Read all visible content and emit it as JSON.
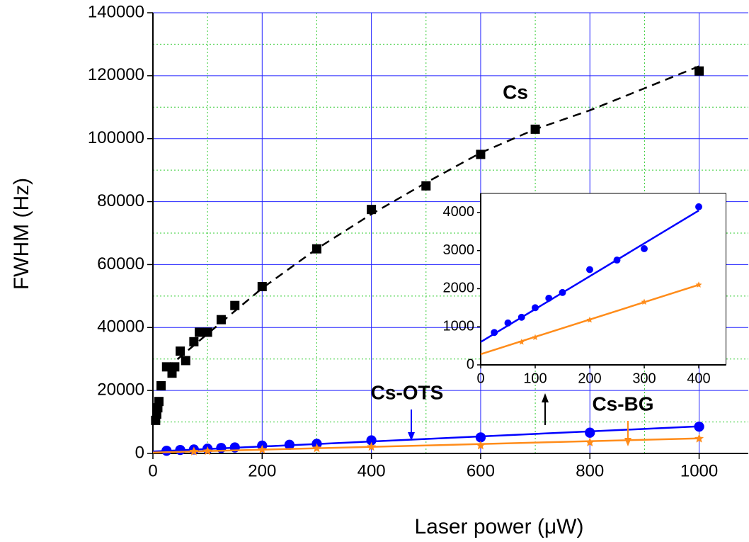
{
  "chart_data": [
    {
      "type": "scatter",
      "xlabel": "Laser power (μW)",
      "ylabel": "FWHM (Hz)",
      "xlim": [
        0,
        1090
      ],
      "ylim": [
        0,
        140000
      ],
      "xticks": [
        0,
        200,
        400,
        600,
        800,
        1000
      ],
      "yticks": [
        0,
        20000,
        40000,
        60000,
        80000,
        100000,
        120000,
        140000
      ],
      "grid": true,
      "series": [
        {
          "name": "Cs",
          "color": "#000000",
          "marker": "square",
          "x": [
            5,
            7,
            9,
            11,
            15,
            25,
            35,
            40,
            50,
            60,
            75,
            85,
            100,
            125,
            150,
            200,
            300,
            400,
            500,
            600,
            700,
            1000
          ],
          "values": [
            10500,
            12500,
            14500,
            16500,
            21500,
            27500,
            25500,
            27500,
            32500,
            29500,
            35500,
            38500,
            38500,
            42500,
            47000,
            53000,
            65000,
            77500,
            85000,
            95000,
            103000,
            121500
          ]
        },
        {
          "color": "#000000",
          "line": "dashed",
          "x": [
            25,
            100,
            200,
            300,
            400,
            500,
            600,
            700,
            800,
            900,
            1000
          ],
          "values": [
            27000,
            38000,
            52500,
            65000,
            76000,
            86000,
            95500,
            103000,
            109000,
            116000,
            123000
          ]
        },
        {
          "name": "Cs-OTS",
          "color": "#0000ff",
          "marker": "circle",
          "x": [
            25,
            50,
            75,
            100,
            125,
            150,
            200,
            250,
            300,
            400,
            600,
            800,
            1000
          ],
          "values": [
            850,
            1100,
            1250,
            1500,
            1750,
            1900,
            2500,
            2750,
            3050,
            4150,
            5100,
            6600,
            8500
          ]
        },
        {
          "color": "#0000ff",
          "line": "solid",
          "x": [
            0,
            1000
          ],
          "values": [
            600,
            8600
          ]
        },
        {
          "name": "Cs-BG",
          "color": "#ff8c1a",
          "marker": "star",
          "x": [
            75,
            100,
            200,
            300,
            400,
            600,
            800,
            1000
          ],
          "values": [
            600,
            720,
            1180,
            1650,
            2100,
            2500,
            3500,
            4700
          ]
        },
        {
          "color": "#ff8c1a",
          "line": "solid",
          "x": [
            0,
            1000
          ],
          "values": [
            300,
            4800
          ]
        }
      ]
    },
    {
      "type": "scatter",
      "xlim": [
        0,
        450
      ],
      "ylim": [
        0,
        4500
      ],
      "xticks": [
        0,
        100,
        200,
        300,
        400
      ],
      "yticks": [
        0,
        1000,
        2000,
        3000,
        4000
      ],
      "grid": false,
      "series": [
        {
          "color": "#0000ff",
          "marker": "circle",
          "x": [
            25,
            50,
            75,
            100,
            125,
            150,
            200,
            250,
            300,
            400
          ],
          "values": [
            850,
            1100,
            1250,
            1500,
            1750,
            1900,
            2500,
            2750,
            3050,
            4150
          ]
        },
        {
          "color": "#0000ff",
          "line": "solid",
          "x": [
            0,
            400
          ],
          "values": [
            600,
            4050
          ]
        },
        {
          "color": "#ff8c1a",
          "marker": "star",
          "x": [
            75,
            100,
            200,
            300,
            400
          ],
          "values": [
            600,
            720,
            1180,
            1650,
            2100
          ]
        },
        {
          "color": "#ff8c1a",
          "line": "solid",
          "x": [
            0,
            400
          ],
          "values": [
            280,
            2100
          ]
        }
      ]
    }
  ]
}
